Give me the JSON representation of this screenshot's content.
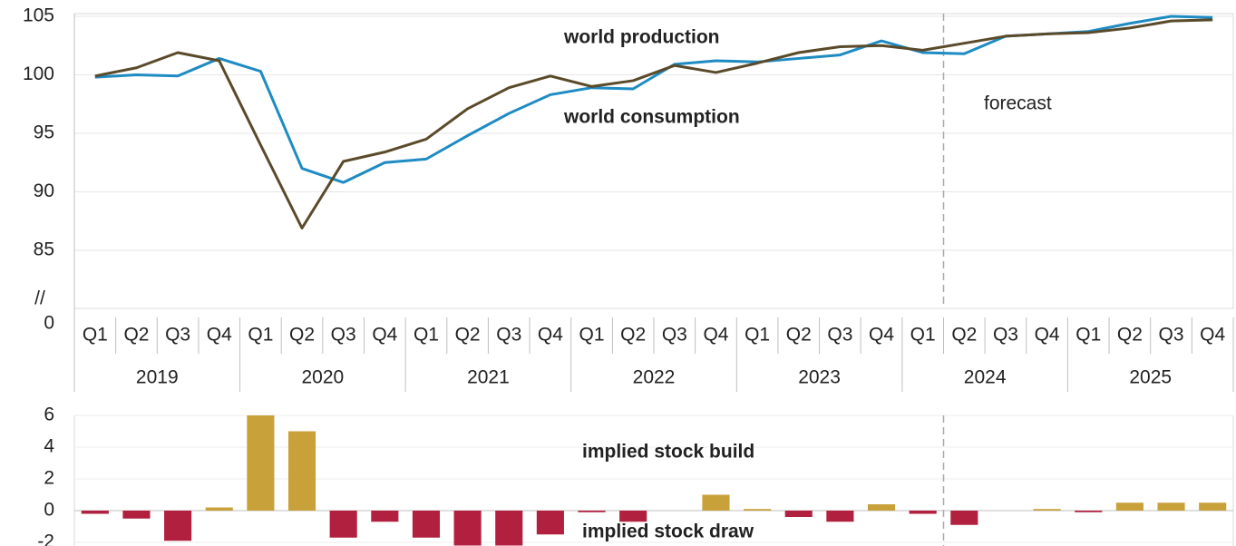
{
  "chart_data": [
    {
      "type": "line",
      "categories": [
        "Q1",
        "Q2",
        "Q3",
        "Q4",
        "Q1",
        "Q2",
        "Q3",
        "Q4",
        "Q1",
        "Q2",
        "Q3",
        "Q4",
        "Q1",
        "Q2",
        "Q3",
        "Q4",
        "Q1",
        "Q2",
        "Q3",
        "Q4",
        "Q1",
        "Q2",
        "Q3",
        "Q4",
        "Q1",
        "Q2",
        "Q3",
        "Q4"
      ],
      "years": [
        "2019",
        "2020",
        "2021",
        "2022",
        "2023",
        "2024",
        "2025"
      ],
      "series": [
        {
          "name": "world production",
          "color": "#1e8bc3",
          "values": [
            99.8,
            100.0,
            99.9,
            101.4,
            100.3,
            92.0,
            90.8,
            92.5,
            92.8,
            94.8,
            96.7,
            98.3,
            98.9,
            98.8,
            100.9,
            101.2,
            101.1,
            101.4,
            101.7,
            102.9,
            101.9,
            101.8,
            103.3,
            103.5,
            103.7,
            104.4,
            105.0,
            104.9
          ]
        },
        {
          "name": "world consumption",
          "color": "#5a4a2a",
          "values": [
            99.9,
            100.6,
            101.9,
            101.2,
            94.0,
            86.9,
            92.6,
            93.4,
            94.5,
            97.1,
            98.9,
            99.9,
            99.0,
            99.5,
            100.8,
            100.2,
            101.0,
            101.9,
            102.4,
            102.5,
            102.1,
            102.7,
            103.3,
            103.5,
            103.6,
            104.0,
            104.6,
            104.7
          ]
        }
      ],
      "ylim": [
        0,
        105
      ],
      "yticks": [
        0,
        85,
        90,
        95,
        100,
        105
      ],
      "axis_break_symbol": "//",
      "annotations": [
        "forecast"
      ],
      "grid": true
    },
    {
      "type": "bar",
      "values": [
        -0.2,
        -0.5,
        -1.9,
        0.2,
        6.0,
        5.0,
        -1.7,
        -0.7,
        -1.7,
        -2.2,
        -2.2,
        -1.5,
        -0.1,
        -0.7,
        0.0,
        1.0,
        0.1,
        -0.4,
        -0.7,
        0.4,
        -0.2,
        -0.9,
        0.0,
        0.1,
        -0.1,
        0.5,
        0.5,
        0.5
      ],
      "positive_color": "#c9a13b",
      "negative_color": "#b22040",
      "ylim": [
        -2,
        6
      ],
      "yticks": [
        -2,
        0,
        2,
        4,
        6
      ],
      "annotations": [
        "implied stock  build",
        "implied stock draw"
      ],
      "grid": true
    }
  ]
}
